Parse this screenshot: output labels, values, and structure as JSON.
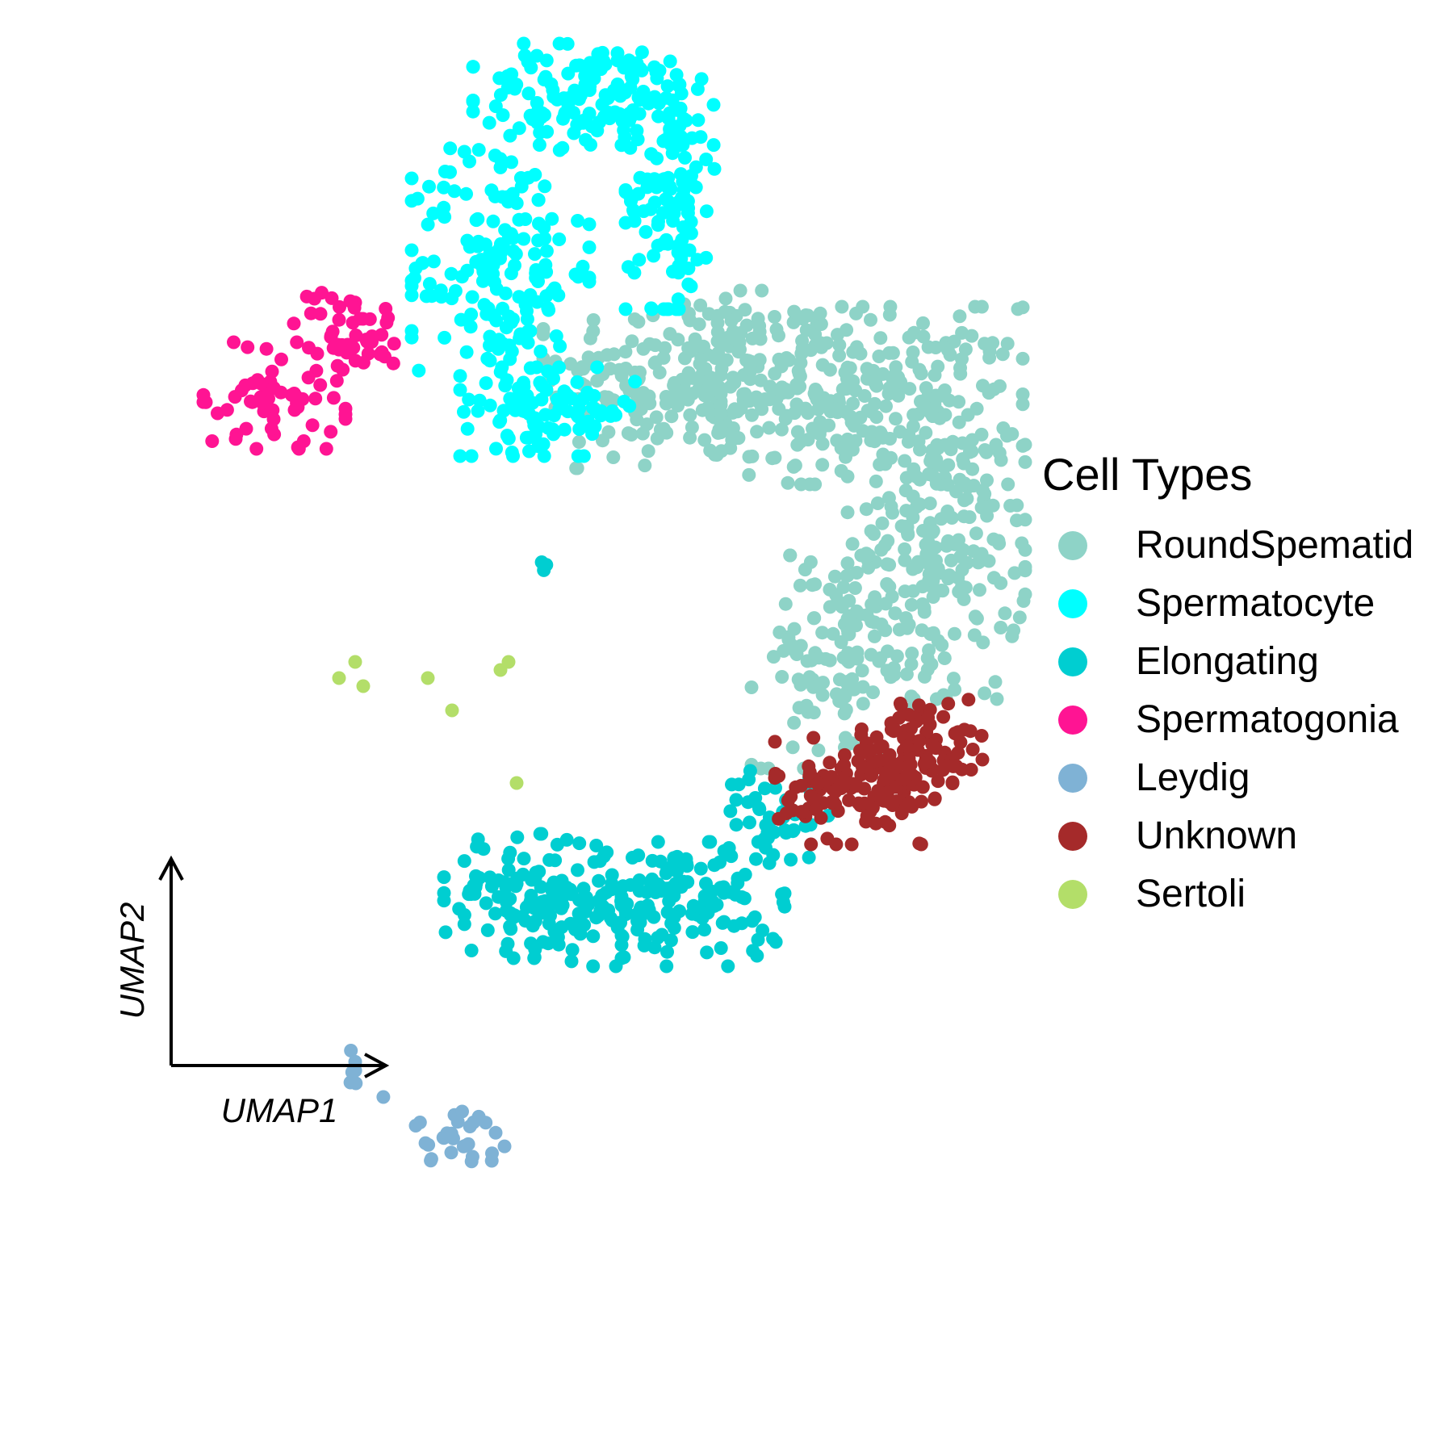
{
  "chart_data": {
    "type": "scatter",
    "xlabel": "UMAP1",
    "ylabel": "UMAP2",
    "grid": false,
    "legend_position": "right",
    "legend_title": "Cell Types",
    "series": [
      {
        "name": "RoundSpematid",
        "color": "#8ED3C7",
        "clusters": [
          {
            "cx": 6.6,
            "cy": 5.8,
            "rx": 1.7,
            "ry": 1.0,
            "n": 240
          },
          {
            "cx": 8.8,
            "cy": 5.6,
            "rx": 1.7,
            "ry": 1.0,
            "n": 240
          },
          {
            "cx": 9.6,
            "cy": 3.6,
            "rx": 1.0,
            "ry": 1.6,
            "n": 220
          },
          {
            "cx": 8.3,
            "cy": 2.3,
            "rx": 0.9,
            "ry": 1.2,
            "n": 110
          }
        ]
      },
      {
        "name": "Spermatocyte",
        "color": "#00FFFF",
        "clusters": [
          {
            "cx": 4.2,
            "cy": 7.2,
            "rx": 1.0,
            "ry": 1.5,
            "n": 180
          },
          {
            "cx": 5.4,
            "cy": 9.3,
            "rx": 1.4,
            "ry": 0.6,
            "n": 150
          },
          {
            "cx": 6.3,
            "cy": 8.1,
            "rx": 0.5,
            "ry": 1.3,
            "n": 110
          },
          {
            "cx": 4.8,
            "cy": 5.4,
            "rx": 1.0,
            "ry": 0.5,
            "n": 90
          }
        ]
      },
      {
        "name": "Elongating",
        "color": "#00CED1",
        "clusters": [
          {
            "cx": 4.6,
            "cy": -0.6,
            "rx": 1.0,
            "ry": 0.7,
            "n": 140
          },
          {
            "cx": 6.4,
            "cy": -0.7,
            "rx": 1.2,
            "ry": 0.7,
            "n": 150
          },
          {
            "cx": 7.6,
            "cy": 0.4,
            "rx": 0.6,
            "ry": 0.5,
            "n": 40
          },
          {
            "cx": 4.7,
            "cy": 3.5,
            "rx": 0.1,
            "ry": 0.1,
            "n": 3
          }
        ]
      },
      {
        "name": "Spermatogonia",
        "color": "#FF1493",
        "clusters": [
          {
            "cx": 1.4,
            "cy": 5.6,
            "rx": 0.8,
            "ry": 0.6,
            "n": 60
          },
          {
            "cx": 2.3,
            "cy": 6.4,
            "rx": 0.6,
            "ry": 0.5,
            "n": 50
          }
        ]
      },
      {
        "name": "Leydig",
        "color": "#7FB2D5",
        "clusters": [
          {
            "cx": 3.7,
            "cy": -3.6,
            "rx": 0.5,
            "ry": 0.3,
            "n": 28
          },
          {
            "cx": 2.4,
            "cy": -2.7,
            "rx": 0.1,
            "ry": 0.2,
            "n": 6
          },
          {
            "cx": 2.8,
            "cy": -3.1,
            "rx": 0.05,
            "ry": 0.05,
            "n": 1
          }
        ]
      },
      {
        "name": "Unknown",
        "color": "#A52A2A",
        "clusters": [
          {
            "cx": 8.7,
            "cy": 0.7,
            "rx": 1.0,
            "ry": 0.6,
            "n": 130
          },
          {
            "cx": 9.4,
            "cy": 1.3,
            "rx": 0.7,
            "ry": 0.5,
            "n": 80
          }
        ]
      },
      {
        "name": "Sertoli",
        "color": "#B3DE69",
        "points": [
          [
            2.2,
            2.1
          ],
          [
            2.4,
            2.3
          ],
          [
            2.5,
            2.0
          ],
          [
            3.3,
            2.1
          ],
          [
            3.6,
            1.7
          ],
          [
            4.2,
            2.2
          ],
          [
            4.3,
            2.3
          ],
          [
            4.4,
            0.8
          ]
        ]
      }
    ]
  }
}
